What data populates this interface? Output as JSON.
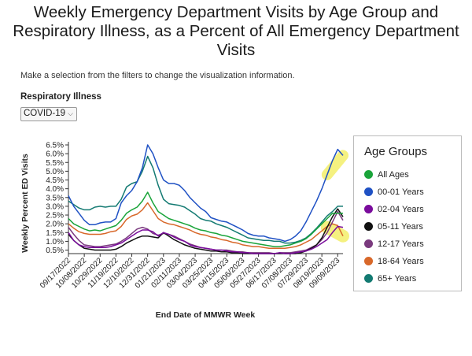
{
  "title_lines": [
    "Weekly Emergency Department Visits by Age Group and",
    "Respiratory Illness, as a Percent of All Emergency Department",
    "Visits"
  ],
  "subtitle": "Make a selection from the filters to change the visualization information.",
  "filter": {
    "label": "Respiratory Illness",
    "selected": "COVID-19"
  },
  "legend_title": "Age Groups",
  "colors": {
    "All Ages": "#1aa43a",
    "00-01 Years": "#1f51c4",
    "02-04 Years": "#7a0c9c",
    "05-11 Years": "#111111",
    "12-17 Years": "#7a3a7e",
    "18-64 Years": "#d8682a",
    "65+ Years": "#137a72",
    "highlight": "#f3ee6a"
  },
  "chart_data": {
    "type": "line",
    "xlabel": "End Date of MMWR Week",
    "ylabel": "Weekly Percent ED Visits",
    "y_ticks": [
      "0.5%",
      "1.0%",
      "1.5%",
      "2.0%",
      "2.5%",
      "3.0%",
      "3.5%",
      "4.0%",
      "4.5%",
      "5.0%",
      "5.5%",
      "6.0%",
      "6.5%"
    ],
    "ylim": [
      0.3,
      6.5
    ],
    "x_tick_labels": [
      "09/17/2022",
      "10/08/2022",
      "10/29/2022",
      "11/19/2022",
      "12/10/2022",
      "12/31/2022",
      "01/21/2023",
      "02/11/2023",
      "03/04/2023",
      "03/25/2023",
      "04/15/2023",
      "05/06/2023",
      "05/27/2023",
      "06/17/2023",
      "07/08/2023",
      "07/29/2023",
      "08/19/2023",
      "09/09/2023"
    ],
    "x": [
      "09/17/2022",
      "09/24/2022",
      "10/01/2022",
      "10/08/2022",
      "10/15/2022",
      "10/22/2022",
      "10/29/2022",
      "11/05/2022",
      "11/12/2022",
      "11/19/2022",
      "11/26/2022",
      "12/03/2022",
      "12/10/2022",
      "12/17/2022",
      "12/24/2022",
      "12/31/2022",
      "01/07/2023",
      "01/14/2023",
      "01/21/2023",
      "01/28/2023",
      "02/04/2023",
      "02/11/2023",
      "02/18/2023",
      "02/25/2023",
      "03/04/2023",
      "03/11/2023",
      "03/18/2023",
      "03/25/2023",
      "04/01/2023",
      "04/08/2023",
      "04/15/2023",
      "04/22/2023",
      "04/29/2023",
      "05/06/2023",
      "05/13/2023",
      "05/20/2023",
      "05/27/2023",
      "06/03/2023",
      "06/10/2023",
      "06/17/2023",
      "06/24/2023",
      "07/01/2023",
      "07/08/2023",
      "07/15/2023",
      "07/22/2023",
      "07/29/2023",
      "08/05/2023",
      "08/12/2023",
      "08/19/2023",
      "08/26/2023",
      "09/02/2023",
      "09/09/2023",
      "09/16/2023"
    ],
    "series": [
      {
        "name": "All Ages",
        "values": [
          2.3,
          2.0,
          1.85,
          1.7,
          1.6,
          1.65,
          1.6,
          1.7,
          1.8,
          1.9,
          2.2,
          2.6,
          2.8,
          2.95,
          3.3,
          3.8,
          3.2,
          2.7,
          2.5,
          2.3,
          2.2,
          2.1,
          2.0,
          1.9,
          1.75,
          1.65,
          1.6,
          1.5,
          1.45,
          1.35,
          1.3,
          1.2,
          1.1,
          1.0,
          0.95,
          0.9,
          0.85,
          0.8,
          0.75,
          0.7,
          0.7,
          0.75,
          0.8,
          0.9,
          1.0,
          1.15,
          1.4,
          1.7,
          2.0,
          2.3,
          2.6,
          2.6,
          2.6
        ]
      },
      {
        "name": "00-01 Years",
        "values": [
          3.6,
          3.0,
          2.6,
          2.2,
          1.95,
          1.95,
          2.05,
          2.1,
          2.1,
          2.3,
          3.2,
          3.6,
          3.9,
          4.4,
          5.2,
          6.5,
          6.0,
          5.2,
          4.5,
          4.3,
          4.3,
          4.2,
          3.9,
          3.5,
          3.2,
          2.9,
          2.7,
          2.35,
          2.25,
          2.15,
          2.1,
          1.95,
          1.8,
          1.65,
          1.45,
          1.35,
          1.3,
          1.3,
          1.2,
          1.15,
          1.1,
          1.0,
          1.1,
          1.3,
          1.6,
          2.1,
          2.7,
          3.3,
          4.0,
          4.8,
          5.6,
          6.25,
          5.9
        ]
      },
      {
        "name": "02-04 Years",
        "values": [
          1.5,
          1.05,
          0.8,
          0.7,
          0.65,
          0.65,
          0.65,
          0.65,
          0.7,
          0.8,
          0.9,
          1.1,
          1.3,
          1.5,
          1.65,
          1.65,
          1.55,
          1.3,
          1.5,
          1.4,
          1.25,
          1.1,
          1.0,
          0.8,
          0.7,
          0.65,
          0.6,
          0.55,
          0.5,
          0.5,
          0.45,
          0.4,
          0.4,
          0.35,
          0.35,
          0.3,
          0.3,
          0.3,
          0.3,
          0.3,
          0.35,
          0.3,
          0.3,
          0.35,
          0.4,
          0.45,
          0.55,
          0.7,
          0.9,
          1.1,
          1.5,
          1.85,
          1.8
        ]
      },
      {
        "name": "05-11 Years",
        "values": [
          1.4,
          1.05,
          0.8,
          0.6,
          0.55,
          0.5,
          0.5,
          0.5,
          0.5,
          0.55,
          0.7,
          0.9,
          1.05,
          1.2,
          1.3,
          1.3,
          1.25,
          1.2,
          1.5,
          1.3,
          1.1,
          0.95,
          0.8,
          0.7,
          0.6,
          0.55,
          0.5,
          0.45,
          0.45,
          0.4,
          0.4,
          0.35,
          0.35,
          0.3,
          0.3,
          0.3,
          0.3,
          0.3,
          0.3,
          0.3,
          0.3,
          0.3,
          0.3,
          0.3,
          0.35,
          0.45,
          0.6,
          0.8,
          1.2,
          1.8,
          2.4,
          2.85,
          2.4
        ]
      },
      {
        "name": "12-17 Years",
        "values": [
          1.8,
          1.4,
          1.05,
          0.8,
          0.75,
          0.7,
          0.7,
          0.75,
          0.8,
          0.85,
          1.0,
          1.2,
          1.45,
          1.7,
          1.8,
          1.7,
          1.45,
          1.35,
          1.45,
          1.4,
          1.3,
          1.15,
          1.0,
          0.85,
          0.75,
          0.65,
          0.6,
          0.55,
          0.5,
          0.5,
          0.5,
          0.45,
          0.4,
          0.4,
          0.35,
          0.35,
          0.35,
          0.35,
          0.35,
          0.3,
          0.35,
          0.35,
          0.35,
          0.4,
          0.45,
          0.5,
          0.65,
          0.8,
          1.1,
          1.5,
          2.1,
          2.7,
          2.2
        ]
      },
      {
        "name": "18-64 Years",
        "values": [
          2.0,
          1.75,
          1.55,
          1.45,
          1.4,
          1.4,
          1.4,
          1.45,
          1.55,
          1.6,
          1.85,
          2.25,
          2.45,
          2.55,
          2.8,
          3.2,
          2.75,
          2.3,
          2.1,
          2.0,
          1.95,
          1.85,
          1.75,
          1.65,
          1.5,
          1.4,
          1.35,
          1.25,
          1.2,
          1.1,
          1.05,
          0.95,
          0.9,
          0.8,
          0.75,
          0.7,
          0.7,
          0.65,
          0.6,
          0.6,
          0.6,
          0.6,
          0.65,
          0.7,
          0.8,
          0.95,
          1.1,
          1.35,
          1.6,
          1.85,
          2.0,
          1.9,
          1.3
        ]
      },
      {
        "name": "65+ Years",
        "values": [
          3.3,
          3.1,
          2.9,
          2.8,
          2.8,
          2.95,
          3.0,
          2.95,
          3.0,
          3.0,
          3.4,
          4.1,
          4.3,
          4.4,
          5.0,
          5.85,
          5.2,
          4.2,
          3.4,
          3.15,
          3.1,
          3.05,
          2.95,
          2.75,
          2.55,
          2.3,
          2.2,
          2.15,
          2.0,
          1.9,
          1.8,
          1.65,
          1.5,
          1.35,
          1.2,
          1.15,
          1.1,
          1.05,
          1.05,
          1.0,
          1.0,
          0.9,
          0.9,
          0.95,
          1.05,
          1.2,
          1.45,
          1.75,
          2.1,
          2.45,
          2.7,
          3.0,
          3.0
        ]
      }
    ]
  }
}
